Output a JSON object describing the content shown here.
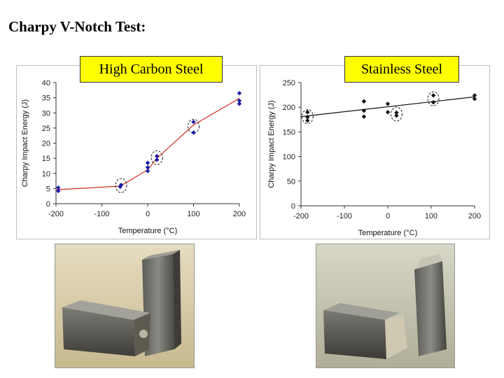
{
  "page": {
    "title": "Charpy V-Notch Test:"
  },
  "chart_data": [
    {
      "type": "scatter",
      "label": "High Carbon Steel",
      "xlabel": "Temperature (°C)",
      "ylabel": "Charpy Impact Energy (J)",
      "xlim": [
        -200,
        200
      ],
      "ylim": [
        0,
        40
      ],
      "xticks": [
        -200,
        -100,
        0,
        100,
        200
      ],
      "yticks": [
        0,
        5,
        10,
        15,
        20,
        25,
        30,
        35,
        40
      ],
      "grid": false,
      "marker_color": "#1a1aa6",
      "line_color": "#cc2a1e",
      "points": [
        {
          "x": -195,
          "y": 4.2
        },
        {
          "x": -195,
          "y": 5.3
        },
        {
          "x": -60,
          "y": 5.6
        },
        {
          "x": -58,
          "y": 6.2
        },
        {
          "x": 0,
          "y": 10.8
        },
        {
          "x": 0,
          "y": 12.0
        },
        {
          "x": 0,
          "y": 13.5
        },
        {
          "x": 20,
          "y": 14.5
        },
        {
          "x": 20,
          "y": 15.7
        },
        {
          "x": 100,
          "y": 23.5
        },
        {
          "x": 100,
          "y": 27.0
        },
        {
          "x": 200,
          "y": 33.0
        },
        {
          "x": 200,
          "y": 34.0
        },
        {
          "x": 200,
          "y": 36.5
        }
      ],
      "trend": [
        {
          "x": -200,
          "y": 4.6
        },
        {
          "x": -60,
          "y": 5.8
        },
        {
          "x": 0,
          "y": 11.2
        },
        {
          "x": 20,
          "y": 15.0
        },
        {
          "x": 100,
          "y": 26.0
        },
        {
          "x": 200,
          "y": 34.8
        }
      ],
      "highlights": [
        {
          "x": -58,
          "y": 6.0
        },
        {
          "x": 20,
          "y": 15.2
        },
        {
          "x": 100,
          "y": 25.6
        }
      ]
    },
    {
      "type": "scatter",
      "label": "Stainless Steel",
      "xlabel": "Temperature (°C)",
      "ylabel": "Charpy Impact Energy (J)",
      "xlim": [
        -200,
        200
      ],
      "ylim": [
        0,
        250
      ],
      "xticks": [
        -200,
        -100,
        0,
        100,
        200
      ],
      "yticks": [
        0,
        50,
        100,
        150,
        200,
        250
      ],
      "grid": false,
      "marker_color": "#111111",
      "line_color": "#111111",
      "points": [
        {
          "x": -185,
          "y": 173
        },
        {
          "x": -185,
          "y": 180
        },
        {
          "x": -185,
          "y": 190
        },
        {
          "x": -55,
          "y": 181
        },
        {
          "x": -55,
          "y": 193
        },
        {
          "x": -55,
          "y": 212
        },
        {
          "x": 0,
          "y": 190
        },
        {
          "x": 0,
          "y": 207
        },
        {
          "x": 20,
          "y": 183
        },
        {
          "x": 20,
          "y": 189
        },
        {
          "x": 105,
          "y": 210
        },
        {
          "x": 105,
          "y": 224
        },
        {
          "x": 200,
          "y": 217
        },
        {
          "x": 200,
          "y": 224
        }
      ],
      "trend": [
        {
          "x": -200,
          "y": 181
        },
        {
          "x": 200,
          "y": 221
        }
      ],
      "highlights": [
        {
          "x": -185,
          "y": 181
        },
        {
          "x": 20,
          "y": 186
        },
        {
          "x": 105,
          "y": 217
        }
      ]
    }
  ]
}
